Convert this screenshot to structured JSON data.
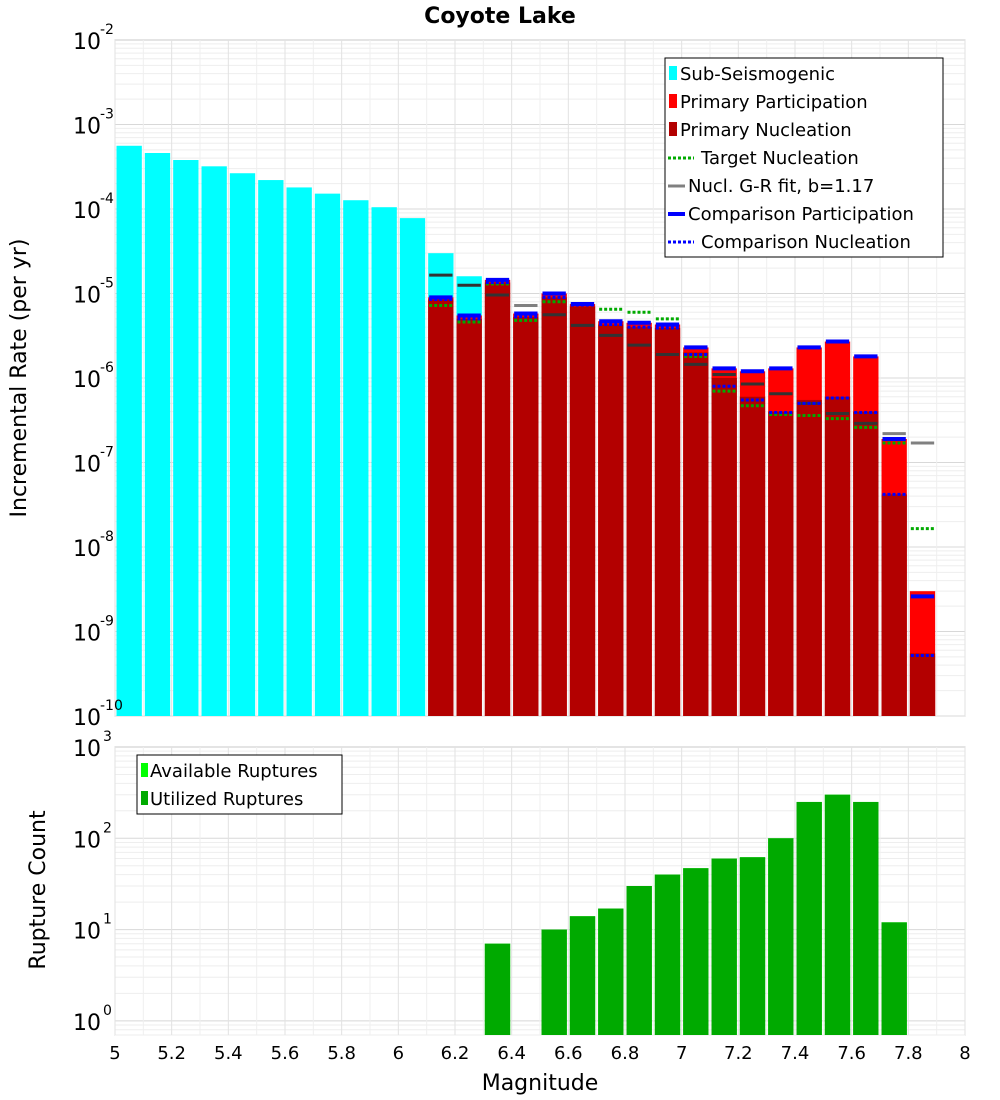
{
  "chart_data": [
    {
      "type": "bar",
      "title": "Coyote Lake",
      "xlabel": "",
      "ylabel": "Incremental Rate (per yr)",
      "yscale": "log",
      "xlim": [
        5,
        8
      ],
      "ylim": [
        1e-10,
        0.01
      ],
      "ytick_exponents": [
        -10,
        -9,
        -8,
        -7,
        -6,
        -5,
        -4,
        -3,
        -2
      ],
      "bin_width": 0.1,
      "colors": {
        "sub_seismogenic": "#00ffff",
        "primary_participation": "#ff0000",
        "primary_nucleation": "#b30000",
        "target_nucleation": "#00aa00",
        "gr_fit": "#808080",
        "gr_fit_dark": "#333333",
        "comparison": "#0000ff"
      },
      "legend": {
        "position": "top-right",
        "entries": [
          {
            "label": "Sub-Seismogenic",
            "style": "swatch",
            "color": "#00ffff"
          },
          {
            "label": "Primary Participation",
            "style": "swatch",
            "color": "#ff0000"
          },
          {
            "label": "Primary Nucleation",
            "style": "swatch",
            "color": "#b30000"
          },
          {
            "label": "Target Nucleation",
            "style": "dotted",
            "color": "#00aa00"
          },
          {
            "label": "Nucl. G-R fit, b=1.17",
            "style": "solid",
            "color": "#808080"
          },
          {
            "label": "Comparison Participation",
            "style": "solid",
            "color": "#0000ff"
          },
          {
            "label": "Comparison Nucleation",
            "style": "dotted",
            "color": "#0000ff"
          }
        ]
      },
      "sub_seismogenic": {
        "x": [
          5.05,
          5.15,
          5.25,
          5.35,
          5.45,
          5.55,
          5.65,
          5.75,
          5.85,
          5.95,
          6.05,
          6.15,
          6.25
        ],
        "values": [
          0.00056,
          0.00046,
          0.00038,
          0.00032,
          0.000265,
          0.00022,
          0.00018,
          0.000152,
          0.000127,
          0.000105,
          7.8e-05,
          3e-05,
          1.6e-05
        ]
      },
      "primary_participation": {
        "x": [
          6.15,
          6.25,
          6.35,
          6.45,
          6.55,
          6.65,
          6.75,
          6.85,
          6.95,
          7.05,
          7.15,
          7.25,
          7.35,
          7.45,
          7.55,
          7.65,
          7.75,
          7.85
        ],
        "values": [
          9e-06,
          5.5e-06,
          1.45e-05,
          5.8e-06,
          1e-05,
          7.5e-06,
          4.7e-06,
          4.5e-06,
          4.3e-06,
          2.3e-06,
          1.3e-06,
          1.2e-06,
          1.3e-06,
          2.3e-06,
          2.7e-06,
          1.8e-06,
          1.9e-07,
          3e-09
        ]
      },
      "primary_nucleation": {
        "x": [
          6.15,
          6.25,
          6.35,
          6.45,
          6.55,
          6.65,
          6.75,
          6.85,
          6.95,
          7.05,
          7.15,
          7.25,
          7.35,
          7.45,
          7.55,
          7.65,
          7.75,
          7.85
        ],
        "values": [
          8.5e-06,
          5e-06,
          1.35e-05,
          5.3e-06,
          9e-06,
          7e-06,
          4.3e-06,
          4e-06,
          3.9e-06,
          2e-06,
          1e-06,
          6e-07,
          4e-07,
          5.5e-07,
          6e-07,
          4e-07,
          4.2e-08,
          5.5e-10
        ]
      },
      "target_nucleation": {
        "x": [
          6.15,
          6.25,
          6.35,
          6.45,
          6.55,
          6.65,
          6.75,
          6.85,
          6.95,
          7.05,
          7.15,
          7.25,
          7.35,
          7.45,
          7.55,
          7.65,
          7.75,
          7.85
        ],
        "values": [
          7.2e-06,
          4.6e-06,
          1.3e-05,
          4.8e-06,
          8e-06,
          7.5e-06,
          6.5e-06,
          6e-06,
          5e-06,
          1.8e-06,
          7e-07,
          4.7e-07,
          3.7e-07,
          3.6e-07,
          3.3e-07,
          2.6e-07,
          1.7e-07,
          1.65e-08
        ]
      },
      "gr_fit": {
        "x": [
          6.15,
          6.25,
          6.35,
          6.45,
          6.55,
          6.65,
          6.75,
          6.85,
          6.95,
          7.05,
          7.15,
          7.25,
          7.35,
          7.45,
          7.55,
          7.65,
          7.75,
          7.85
        ],
        "values": [
          1.65e-05,
          1.25e-05,
          9.6e-06,
          7.2e-06,
          5.6e-06,
          4.2e-06,
          3.2e-06,
          2.45e-06,
          1.9e-06,
          1.45e-06,
          1.1e-06,
          8.5e-07,
          6.5e-07,
          5e-07,
          3.8e-07,
          2.9e-07,
          2.2e-07,
          1.7e-07
        ]
      },
      "comparison_participation": {
        "x": [
          6.15,
          6.25,
          6.35,
          6.45,
          6.55,
          6.65,
          6.75,
          6.85,
          6.95,
          7.05,
          7.15,
          7.25,
          7.35,
          7.45,
          7.55,
          7.65,
          7.75,
          7.85
        ],
        "values": [
          9e-06,
          5.5e-06,
          1.45e-05,
          5.8e-06,
          1e-05,
          7.5e-06,
          4.7e-06,
          4.5e-06,
          4.3e-06,
          2.3e-06,
          1.3e-06,
          1.2e-06,
          1.3e-06,
          2.3e-06,
          2.7e-06,
          1.8e-06,
          1.9e-07,
          2.6e-09
        ]
      },
      "comparison_nucleation": {
        "x": [
          6.15,
          6.25,
          6.35,
          6.45,
          6.55,
          6.65,
          6.75,
          6.85,
          6.95,
          7.05,
          7.15,
          7.25,
          7.35,
          7.45,
          7.55,
          7.65,
          7.75,
          7.85
        ],
        "values": [
          8.5e-06,
          5e-06,
          1.35e-05,
          5.3e-06,
          9e-06,
          7.3e-06,
          4.3e-06,
          4e-06,
          3.9e-06,
          1.9e-06,
          8e-07,
          5.5e-07,
          3.9e-07,
          5e-07,
          5.8e-07,
          3.9e-07,
          4.2e-08,
          5.2e-10
        ]
      }
    },
    {
      "type": "bar",
      "title": "",
      "xlabel": "Magnitude",
      "ylabel": "Rupture Count",
      "yscale": "log",
      "xlim": [
        5,
        8
      ],
      "ylim": [
        0.7,
        1000
      ],
      "ytick_exponents": [
        0,
        1,
        2,
        3
      ],
      "xticks": [
        "5",
        "5.2",
        "5.4",
        "5.6",
        "5.8",
        "6",
        "6.2",
        "6.4",
        "6.6",
        "6.8",
        "7",
        "7.2",
        "7.4",
        "7.6",
        "7.8",
        "8"
      ],
      "bin_width": 0.1,
      "colors": {
        "available": "#00ff00",
        "utilized": "#00aa00"
      },
      "legend": {
        "position": "top-left",
        "entries": [
          {
            "label": "Available Ruptures",
            "style": "swatch",
            "color": "#00ff00"
          },
          {
            "label": "Utilized Ruptures",
            "style": "swatch",
            "color": "#00aa00"
          }
        ]
      },
      "x": [
        6.35,
        6.55,
        6.65,
        6.75,
        6.85,
        6.95,
        7.05,
        7.15,
        7.25,
        7.35,
        7.45,
        7.55,
        7.65,
        7.75
      ],
      "available": [
        7,
        10,
        14,
        17,
        30,
        40,
        47,
        60,
        62,
        100,
        250,
        300,
        250,
        12
      ],
      "utilized": [
        7,
        10,
        14,
        17,
        30,
        40,
        47,
        60,
        62,
        100,
        250,
        300,
        250,
        12
      ]
    }
  ]
}
